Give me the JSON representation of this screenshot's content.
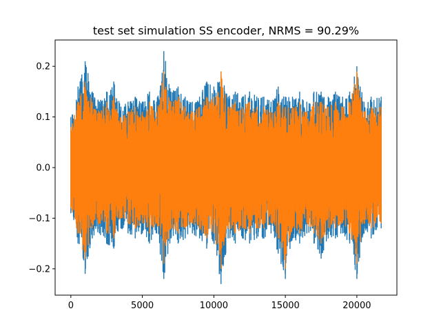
{
  "chart_data": {
    "type": "line",
    "title": "test set simulation SS encoder, NRMS = 90.29%",
    "xlabel": "",
    "ylabel": "",
    "xlim": [
      -1100,
      22800
    ],
    "ylim": [
      -0.252,
      0.252
    ],
    "x_ticks": [
      0,
      5000,
      10000,
      15000,
      20000
    ],
    "x_tick_labels": [
      "0",
      "5000",
      "10000",
      "15000",
      "20000"
    ],
    "y_ticks": [
      -0.2,
      -0.1,
      0.0,
      0.1,
      0.2
    ],
    "y_tick_labels": [
      "−0.2",
      "−0.1",
      "0.0",
      "0.1",
      "0.2"
    ],
    "grid": false,
    "legend": "none",
    "n_samples": 21700,
    "series": [
      {
        "color": "#1f77b4",
        "envelope_x": [
          0,
          500,
          1000,
          1500,
          2000,
          2500,
          3000,
          3500,
          4000,
          4500,
          5000,
          5500,
          6000,
          6500,
          7000,
          7500,
          8000,
          8500,
          9000,
          9500,
          10000,
          10500,
          11000,
          11500,
          12000,
          12500,
          13000,
          13500,
          14000,
          14500,
          15000,
          15500,
          16000,
          16500,
          17000,
          17500,
          18000,
          18500,
          19000,
          19500,
          20000,
          20500,
          21000,
          21700
        ],
        "upper": [
          0.1,
          0.16,
          0.21,
          0.15,
          0.13,
          0.15,
          0.17,
          0.12,
          0.13,
          0.14,
          0.13,
          0.15,
          0.13,
          0.23,
          0.15,
          0.16,
          0.14,
          0.13,
          0.14,
          0.17,
          0.16,
          0.19,
          0.14,
          0.15,
          0.14,
          0.15,
          0.14,
          0.14,
          0.13,
          0.16,
          0.14,
          0.14,
          0.15,
          0.13,
          0.15,
          0.15,
          0.14,
          0.15,
          0.14,
          0.15,
          0.2,
          0.13,
          0.14,
          0.14
        ],
        "lower": [
          -0.09,
          -0.15,
          -0.21,
          -0.14,
          -0.13,
          -0.15,
          -0.16,
          -0.12,
          -0.13,
          -0.14,
          -0.13,
          -0.15,
          -0.13,
          -0.22,
          -0.14,
          -0.15,
          -0.14,
          -0.13,
          -0.14,
          -0.16,
          -0.15,
          -0.23,
          -0.14,
          -0.15,
          -0.14,
          -0.15,
          -0.14,
          -0.14,
          -0.13,
          -0.17,
          -0.22,
          -0.14,
          -0.15,
          -0.13,
          -0.15,
          -0.18,
          -0.14,
          -0.14,
          -0.13,
          -0.15,
          -0.22,
          -0.13,
          -0.14,
          -0.12
        ]
      },
      {
        "color": "#ff7f0e",
        "envelope_x": [
          0,
          500,
          1000,
          1500,
          2000,
          2500,
          3000,
          3500,
          4000,
          4500,
          5000,
          5500,
          6000,
          6500,
          7000,
          7500,
          8000,
          8500,
          9000,
          9500,
          10000,
          10500,
          11000,
          11500,
          12000,
          12500,
          13000,
          13500,
          14000,
          14500,
          15000,
          15500,
          16000,
          16500,
          17000,
          17500,
          18000,
          18500,
          19000,
          19500,
          20000,
          20500,
          21000,
          21700
        ],
        "upper": [
          0.08,
          0.13,
          0.17,
          0.13,
          0.11,
          0.13,
          0.14,
          0.1,
          0.11,
          0.12,
          0.11,
          0.13,
          0.11,
          0.19,
          0.13,
          0.14,
          0.12,
          0.11,
          0.12,
          0.14,
          0.14,
          0.19,
          0.12,
          0.13,
          0.12,
          0.13,
          0.12,
          0.12,
          0.11,
          0.13,
          0.12,
          0.12,
          0.13,
          0.11,
          0.13,
          0.13,
          0.12,
          0.13,
          0.12,
          0.13,
          0.19,
          0.11,
          0.12,
          0.12
        ],
        "lower": [
          -0.08,
          -0.13,
          -0.18,
          -0.12,
          -0.11,
          -0.13,
          -0.14,
          -0.1,
          -0.11,
          -0.12,
          -0.11,
          -0.13,
          -0.11,
          -0.19,
          -0.12,
          -0.13,
          -0.12,
          -0.11,
          -0.12,
          -0.14,
          -0.13,
          -0.2,
          -0.12,
          -0.13,
          -0.12,
          -0.13,
          -0.12,
          -0.12,
          -0.11,
          -0.14,
          -0.2,
          -0.12,
          -0.13,
          -0.11,
          -0.13,
          -0.15,
          -0.12,
          -0.12,
          -0.11,
          -0.13,
          -0.19,
          -0.11,
          -0.12,
          -0.11
        ]
      }
    ]
  }
}
